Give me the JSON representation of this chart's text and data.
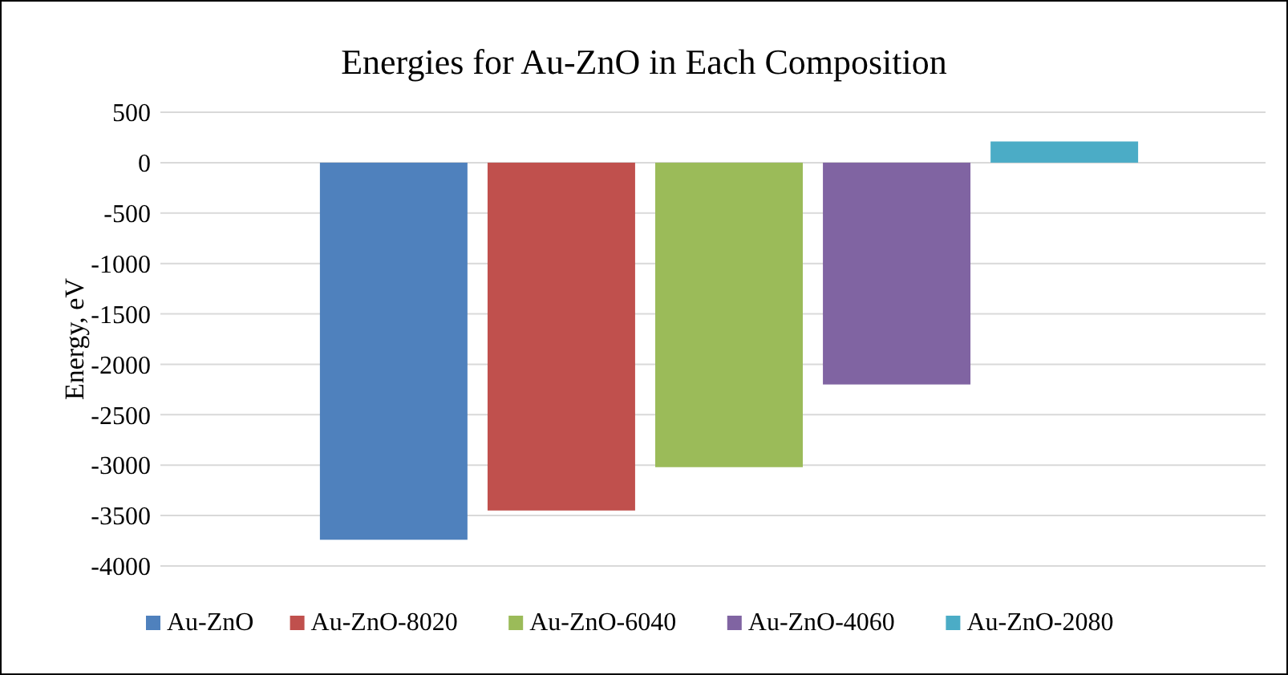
{
  "chart_data": {
    "type": "bar",
    "title": "Energies for Au-ZnO in Each Composition",
    "ylabel": "Energy, eV",
    "categories": [
      null
    ],
    "series": [
      {
        "name": "Au-ZnO",
        "color": "#4f81bd",
        "values": [
          -3740
        ]
      },
      {
        "name": "Au-ZnO-8020",
        "color": "#c0504d",
        "values": [
          -3450
        ]
      },
      {
        "name": "Au-ZnO-6040",
        "color": "#9bbb59",
        "values": [
          -3020
        ]
      },
      {
        "name": "Au-ZnO-4060",
        "color": "#8064a2",
        "values": [
          -2200
        ]
      },
      {
        "name": "Au-ZnO-2080",
        "color": "#4bacc6",
        "values": [
          210
        ]
      }
    ],
    "ylim": [
      -4000,
      500
    ],
    "yticks": [
      -4000,
      -3500,
      -3000,
      -2500,
      -2000,
      -1500,
      -1000,
      -500,
      0,
      500
    ],
    "grid": "y",
    "legend": "bottom"
  }
}
